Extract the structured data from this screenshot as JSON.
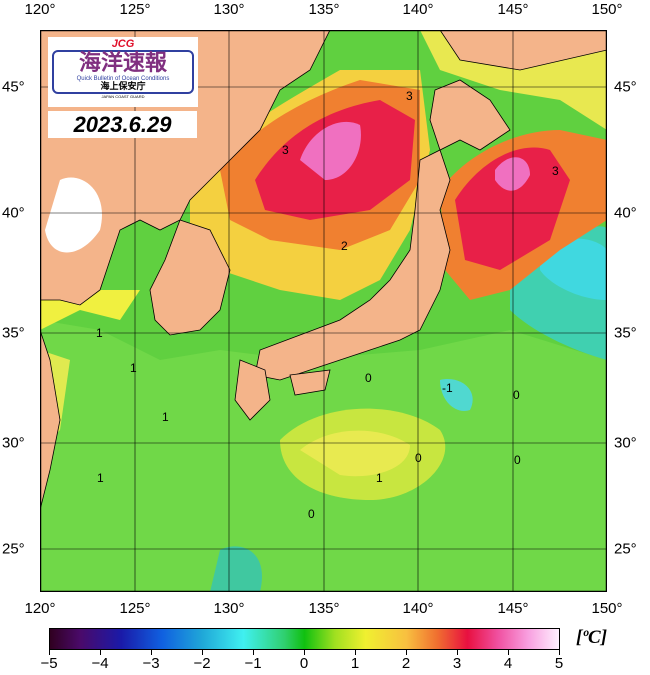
{
  "title_logo": {
    "acronym": "JCG",
    "main_text": "海洋速報",
    "subtitle": "Quick Bulletin of Ocean Conditions",
    "agency_jp": "海上保安庁",
    "agency_en": "JAPAN COAST GUARD"
  },
  "date": "2023.6.29",
  "map": {
    "lon_ticks": [
      "120°",
      "125°",
      "130°",
      "135°",
      "140°",
      "145°",
      "150°"
    ],
    "lat_ticks": [
      "45°",
      "40°",
      "35°",
      "30°",
      "25°"
    ],
    "contour_labels": [
      "3",
      "3",
      "3",
      "2",
      "1",
      "1",
      "1",
      "1",
      "0",
      "0",
      "0",
      "0",
      "-1",
      "0",
      "1"
    ],
    "colors": {
      "land": "#f4b48a",
      "frame": "#000000"
    }
  },
  "colorbar": {
    "ticks": [
      "−5",
      "−4",
      "−3",
      "−2",
      "−1",
      "0",
      "1",
      "2",
      "3",
      "4",
      "5"
    ],
    "unit": "[ºC]",
    "range": [
      -5,
      5
    ]
  }
}
